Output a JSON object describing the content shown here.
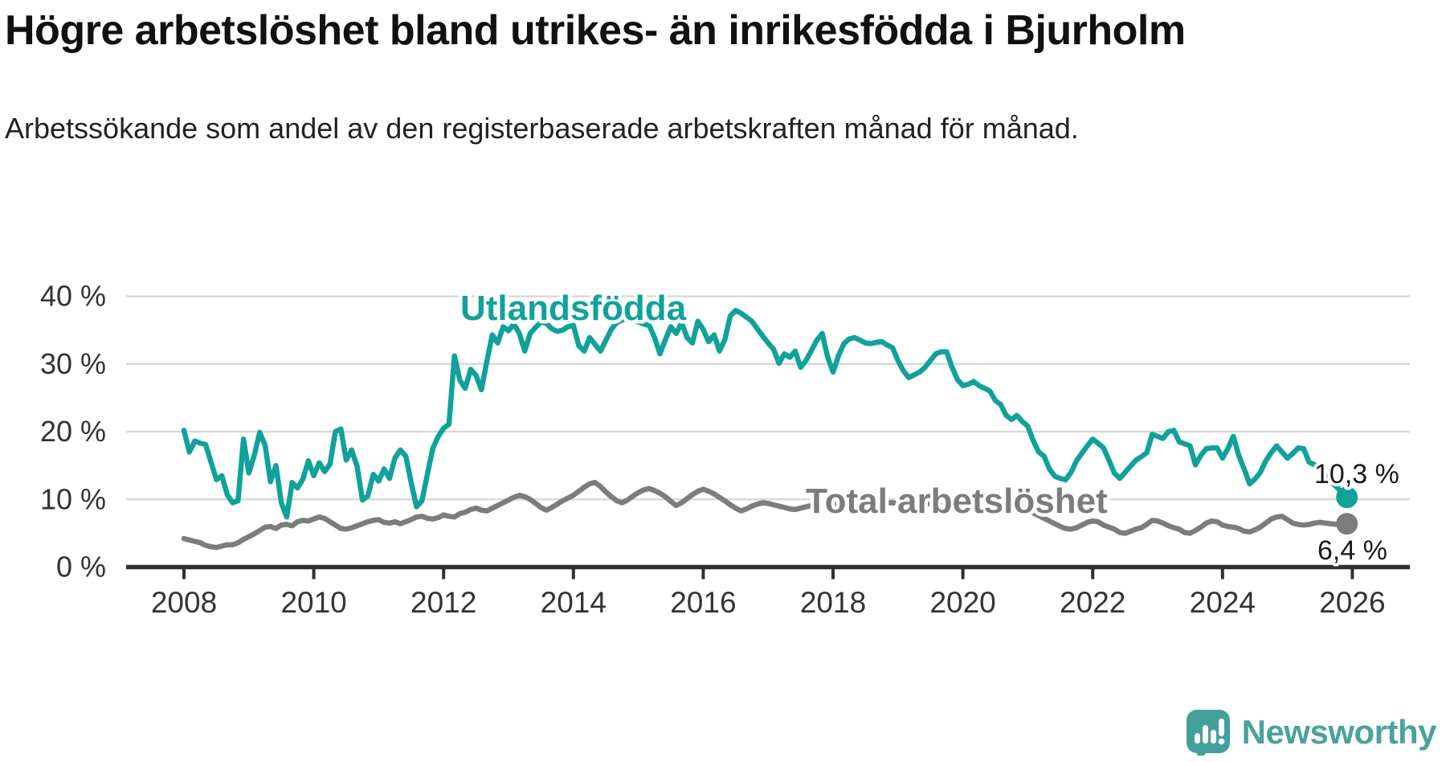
{
  "title": "Högre arbetslöshet bland utrikes- än inrikesfödda i Bjurholm",
  "subtitle": "Arbetssökande som andel av den registerbaserade arbetskraften månad för månad.",
  "branding": {
    "logo_text": "Newsworthy",
    "logo_color": "#4aa29b"
  },
  "colors": {
    "teal_line": "#10A29A",
    "gray_line": "#7C7C7C",
    "gridline": "#D9D9D9",
    "axis": "#2F2F2F",
    "axis_text": "#333333",
    "value_text": "#1a1a1a"
  },
  "chart_data": {
    "type": "line",
    "unit": "%",
    "frequency": "monthly",
    "x_start": "2008-01",
    "x_end": "2025-12",
    "ylim": [
      0,
      40
    ],
    "grid": "horizontal",
    "legend_position": "inline-annotations",
    "x_tick_labels": [
      "2008",
      "2010",
      "2012",
      "2014",
      "2016",
      "2018",
      "2020",
      "2022",
      "2024",
      "2026"
    ],
    "y_tick_labels": [
      "0 %",
      "10 %",
      "20 %",
      "30 %",
      "40 %"
    ],
    "series": [
      {
        "name": "Utlandsfödda",
        "color": "#10A29A",
        "end_label": "10,3 %",
        "end_value": 10.3,
        "values": [
          20.2,
          17,
          18.6,
          18.3,
          18.1,
          15.5,
          12.9,
          13.5,
          10.7,
          9.5,
          9.8,
          18.9,
          13.9,
          16.5,
          19.9,
          18,
          12.6,
          15,
          9.5,
          7.4,
          12.5,
          11.7,
          13,
          15.7,
          13.5,
          15.4,
          14.1,
          15.2,
          20,
          20.4,
          15.8,
          17.3,
          14.9,
          9.9,
          10.5,
          13.7,
          12.7,
          14.5,
          13.1,
          16.1,
          17.3,
          16.4,
          12.5,
          8.9,
          9.8,
          13.7,
          17.5,
          19.3,
          20.5,
          21.1,
          31.2,
          27.6,
          26.4,
          29.2,
          28.3,
          26.2,
          30.4,
          34.3,
          33.1,
          35.5,
          34.9,
          35.9,
          34.5,
          31.9,
          34.5,
          35.4,
          36.2,
          36,
          35.2,
          34.8,
          35,
          35.5,
          35.7,
          32.7,
          31.9,
          33.9,
          32.9,
          31.9,
          33.5,
          35.1,
          36.1,
          36.5,
          36.8,
          36.5,
          36.2,
          35.9,
          35.7,
          33.9,
          31.5,
          33.6,
          35.5,
          34.5,
          36.1,
          33.9,
          33.1,
          36.3,
          35.1,
          33.3,
          34.3,
          31.9,
          33.6,
          37.1,
          37.9,
          37.5,
          36.9,
          36.3,
          35.2,
          34.1,
          33.1,
          32.2,
          30.1,
          31.5,
          31,
          31.9,
          29.5,
          30.5,
          32,
          33.5,
          34.5,
          31,
          28.8,
          31.2,
          33,
          33.7,
          33.9,
          33.5,
          33.1,
          33,
          33.2,
          33.3,
          32.8,
          32.4,
          30.5,
          29,
          28,
          28.4,
          28.8,
          29.5,
          30.5,
          31.5,
          31.8,
          31.8,
          29.5,
          27.7,
          26.8,
          27,
          27.4,
          26.8,
          26.4,
          26,
          24.6,
          24,
          22.4,
          21.8,
          22.4,
          21.5,
          20.8,
          18.7,
          17,
          16.4,
          14.5,
          13.4,
          13.1,
          12.9,
          14,
          15.7,
          16.8,
          17.9,
          18.9,
          18.3,
          17.6,
          15.8,
          13.9,
          13.1,
          14,
          14.9,
          15.8,
          16.3,
          16.9,
          19.6,
          19.3,
          19,
          20,
          20.2,
          18.5,
          18.2,
          17.9,
          15.1,
          16.5,
          17.5,
          17.6,
          17.6,
          16.1,
          17.5,
          19.3,
          16.5,
          14.5,
          12.3,
          13,
          14,
          15.7,
          16.9,
          17.9,
          17,
          16.1,
          16.8,
          17.6,
          17.5,
          15.5,
          15.1,
          14.3,
          13.5,
          12.7,
          11.9,
          11.1,
          10.3
        ]
      },
      {
        "name": "Total arbetslöshet",
        "color": "#7C7C7C",
        "end_label": "6,4 %",
        "end_value": 6.4,
        "values": [
          4.2,
          4,
          3.8,
          3.6,
          3.2,
          3,
          2.9,
          3.1,
          3.3,
          3.3,
          3.6,
          4.1,
          4.5,
          4.9,
          5.4,
          5.9,
          6,
          5.7,
          6.2,
          6.3,
          6.1,
          6.7,
          6.9,
          6.8,
          7.1,
          7.4,
          7.2,
          6.7,
          6.2,
          5.7,
          5.6,
          5.8,
          6.1,
          6.4,
          6.7,
          6.9,
          7,
          6.6,
          6.5,
          6.7,
          6.4,
          6.7,
          7,
          7.4,
          7.5,
          7.2,
          7.1,
          7.3,
          7.7,
          7.5,
          7.4,
          7.9,
          8.1,
          8.5,
          8.7,
          8.4,
          8.3,
          8.7,
          9.1,
          9.5,
          9.9,
          10.3,
          10.6,
          10.4,
          10,
          9.4,
          8.8,
          8.4,
          8.8,
          9.3,
          9.8,
          10.2,
          10.6,
          11.2,
          11.8,
          12.3,
          12.5,
          11.9,
          11.1,
          10.4,
          9.8,
          9.5,
          9.9,
          10.5,
          11,
          11.4,
          11.6,
          11.3,
          10.9,
          10.4,
          9.7,
          9.1,
          9.5,
          10.1,
          10.7,
          11.2,
          11.5,
          11.2,
          10.8,
          10.3,
          9.8,
          9.2,
          8.7,
          8.3,
          8.6,
          9,
          9.3,
          9.5,
          9.4,
          9.2,
          9,
          8.8,
          8.6,
          8.5,
          8.7,
          8.9,
          9.1,
          9.2,
          9.3,
          9.4,
          9.3,
          9.1,
          8.9,
          8.8,
          8.7,
          8.8,
          9,
          9.2,
          9.3,
          9.4,
          9.5,
          9.5,
          9.4,
          9.3,
          9.2,
          9.1,
          9.2,
          9.3,
          9.4,
          9.5,
          9.6,
          9.5,
          9.4,
          9.3,
          9.4,
          9.5,
          9.7,
          9.9,
          9.8,
          9.6,
          9.4,
          9.3,
          9.2,
          9,
          8.8,
          8.6,
          8.3,
          8,
          7.6,
          7.2,
          6.8,
          6.4,
          6,
          5.7,
          5.6,
          5.8,
          6.2,
          6.6,
          6.8,
          6.7,
          6.2,
          5.9,
          5.6,
          5.1,
          5,
          5.3,
          5.6,
          5.8,
          6.3,
          6.9,
          6.8,
          6.5,
          6.1,
          5.8,
          5.6,
          5.1,
          5,
          5.4,
          5.9,
          6.5,
          6.8,
          6.7,
          6.2,
          6,
          5.9,
          5.7,
          5.3,
          5.2,
          5.5,
          5.9,
          6.5,
          7.1,
          7.4,
          7.5,
          7,
          6.5,
          6.3,
          6.2,
          6.3,
          6.5,
          6.6,
          6.5,
          6.4,
          6.3,
          6.4,
          6.4
        ]
      }
    ]
  }
}
